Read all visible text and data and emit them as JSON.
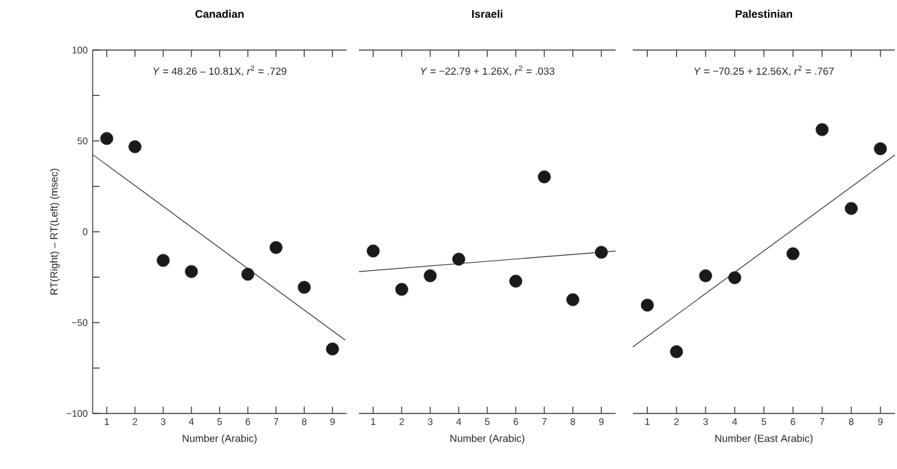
{
  "chart_data": [
    {
      "type": "scatter",
      "title": "Canadian",
      "xlabel": "Number (Arabic)",
      "ylabel": "RT(Right) – RT(Left) (msec)",
      "x": [
        1,
        2,
        3,
        4,
        6,
        7,
        8,
        9
      ],
      "xlim": [
        0.5,
        9.5
      ],
      "xticks": [
        1,
        2,
        3,
        4,
        5,
        6,
        7,
        8,
        9
      ],
      "ylim": [
        -100,
        100
      ],
      "yticks": [
        {
          "value": -100,
          "label": "−100"
        },
        {
          "value": -75,
          "label": null
        },
        {
          "value": -50,
          "label": "−50"
        },
        {
          "value": -25,
          "label": null
        },
        0,
        {
          "value": 25,
          "label": null
        },
        50,
        {
          "value": 75,
          "label": null
        },
        100
      ],
      "marker": "circle",
      "annotations": [
        "*Y* = 48.26 – 10.81X, *r*$^{2}$ = .729"
      ],
      "series": [
        {
          "color": "#1a1a1a",
          "values": [
            51.3,
            46.8,
            -15.8,
            -21.9,
            -23.4,
            -8.7,
            -30.6,
            -64.5
          ]
        },
        {
          "type": "line",
          "marker": "none",
          "color": "#333333",
          "x": [
            0.5,
            9.45
          ],
          "values": [
            42.5,
            -59.6
          ]
        }
      ]
    },
    {
      "type": "scatter",
      "title": "Israeli",
      "xlabel": "Number (Arabic)",
      "x": [
        1,
        2,
        3,
        4,
        6,
        7,
        8,
        9
      ],
      "xlim": [
        0.5,
        9.5
      ],
      "xticks": [
        1,
        2,
        3,
        4,
        5,
        6,
        7,
        8,
        9
      ],
      "ylim": [
        -100,
        100
      ],
      "tick_labels": "x",
      "marker": "circle",
      "annotations": [
        "*Y* = −22.79 + 1.26X, *r*$^{2}$ = .033"
      ],
      "series": [
        {
          "color": "#1a1a1a",
          "values": [
            -10.6,
            -31.7,
            -24.2,
            -15.1,
            -27.2,
            30.2,
            -37.4,
            -11.3
          ]
        },
        {
          "type": "line",
          "marker": "none",
          "color": "#333333",
          "x": [
            0.5,
            9.5
          ],
          "values": [
            -21.9,
            -10.6
          ]
        }
      ]
    },
    {
      "type": "scatter",
      "title": "Palestinian",
      "xlabel": "Number (East Arabic)",
      "x": [
        1,
        2,
        3,
        4,
        6,
        7,
        8,
        9
      ],
      "xlim": [
        0.5,
        9.5
      ],
      "xticks": [
        1,
        2,
        3,
        4,
        5,
        6,
        7,
        8,
        9
      ],
      "ylim": [
        -100,
        100
      ],
      "tick_labels": "x",
      "marker": "circle",
      "annotations": [
        "*Y* = −70.25 + 12.56X, *r*$^{2}$ = .767"
      ],
      "series": [
        {
          "color": "#1a1a1a",
          "values": [
            -40.4,
            -66.0,
            -24.2,
            -25.3,
            -12.1,
            56.2,
            12.8,
            45.7
          ]
        },
        {
          "type": "line",
          "marker": "none",
          "color": "#333333",
          "x": [
            0.5,
            9.5
          ],
          "values": [
            -63.4,
            42.3
          ]
        }
      ]
    }
  ]
}
